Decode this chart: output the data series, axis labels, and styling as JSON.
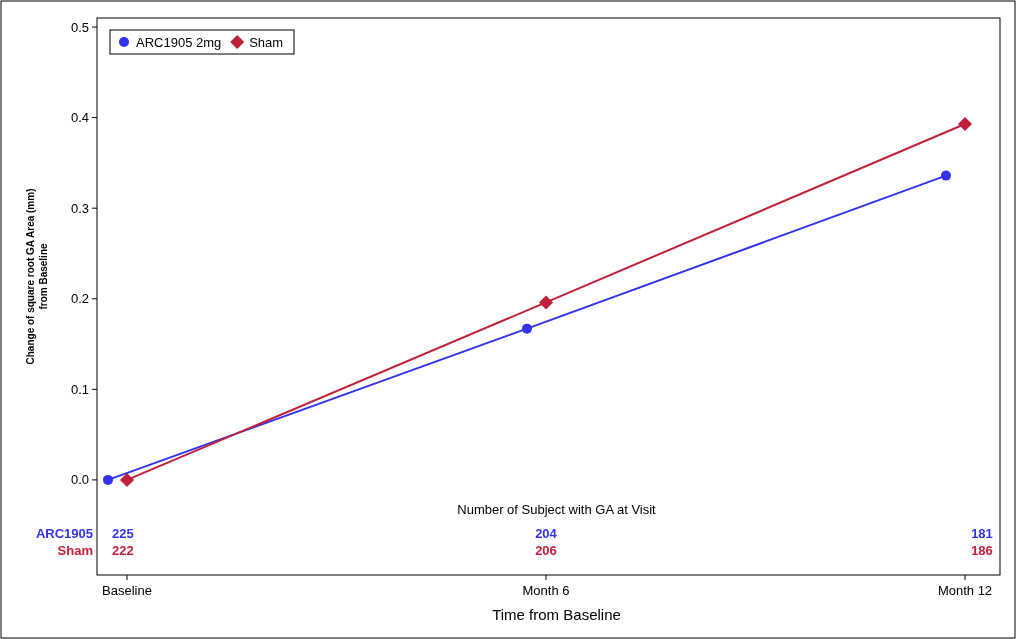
{
  "chart_data": {
    "type": "line",
    "xlabel": "Time from Baseline",
    "ylabel": "Change of square root GA Area (mm) from Baseline",
    "categories": [
      "Baseline",
      "Month 6",
      "Month 12"
    ],
    "series": [
      {
        "name": "ARC1905 2mg",
        "color": "#3333ee",
        "values": [
          0,
          0.167,
          0.336
        ],
        "marker": "circle"
      },
      {
        "name": "Sham",
        "color": "#c0203a",
        "values": [
          0,
          0.196,
          0.393
        ],
        "marker": "diamond"
      }
    ],
    "ylim": [
      -0.105,
      0.51
    ],
    "yticks": [
      {
        "value": 0,
        "label": "0.0"
      },
      {
        "value": 0.1,
        "label": "0.1"
      },
      {
        "value": 0.2,
        "label": "0.2"
      },
      {
        "value": 0.3,
        "label": "0.3"
      },
      {
        "value": 0.4,
        "label": "0.4"
      },
      {
        "value": 0.5,
        "label": "0.5"
      }
    ],
    "grid": false,
    "legend": "top left",
    "line_style": "solid",
    "annotations": [
      "Number of Subject with GA at Visit",
      "ARC1905",
      "Sham",
      "225",
      "204",
      "181",
      "222",
      "206",
      "186"
    ]
  }
}
